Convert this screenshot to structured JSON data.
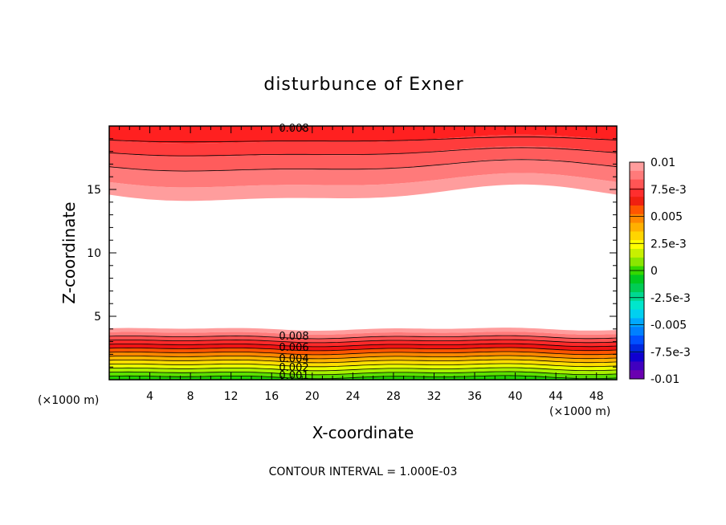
{
  "chart_data": {
    "type": "contour",
    "title": "disturbunce of Exner",
    "xlabel": "X-coordinate",
    "ylabel": "Z-coordinate",
    "x_unit": "(×1000 m)",
    "y_unit": "(×1000 m)",
    "xlim": [
      0,
      50
    ],
    "ylim": [
      0,
      20
    ],
    "xticks": [
      4,
      8,
      12,
      16,
      20,
      24,
      28,
      32,
      36,
      40,
      44,
      48
    ],
    "yticks": [
      5,
      10,
      15
    ],
    "note": "CONTOUR INTERVAL = 1.000E-03",
    "contour_interval": 0.001,
    "colorbar": {
      "min": -0.01,
      "max": 0.01,
      "tick_values": [
        0.01,
        0.0075,
        0.005,
        0.0025,
        0,
        -0.0025,
        -0.005,
        -0.0075,
        -0.01
      ],
      "tick_labels": [
        "0.01",
        "7.5e-3",
        "0.005",
        "2.5e-3",
        "0",
        "-2.5e-3",
        "-0.005",
        "-7.5e-3",
        "-0.01"
      ],
      "colors": [
        "#ff9d9d",
        "#ff7a7a",
        "#ff5555",
        "#ff2e2e",
        "#f02010",
        "#ff5500",
        "#ff8800",
        "#ffb000",
        "#ffd500",
        "#ffff00",
        "#c8f000",
        "#8ae600",
        "#34d800",
        "#00c820",
        "#00cc55",
        "#00d890",
        "#00e6cc",
        "#00d0f0",
        "#00a8ff",
        "#0080ff",
        "#0050ff",
        "#0028e0",
        "#1000d0",
        "#4000c0",
        "#6a00b0"
      ]
    },
    "contour_labels": {
      "top": [
        "0.008"
      ],
      "bottom": [
        "0.008",
        "0.006",
        "0.004",
        "0.002",
        "0.001"
      ]
    },
    "upper_layer": {
      "levels": [
        0.001,
        0.002,
        0.003,
        0.004,
        0.005,
        0.006,
        0.007,
        0.008,
        0.009
      ],
      "colors": [
        "#ff9d9d",
        "#ff7a7a",
        "#ff5c5c",
        "#ff3c3c",
        "#ff2020"
      ]
    },
    "lower_layer": {
      "levels": [
        0.001,
        0.002,
        0.003,
        0.004,
        0.005,
        0.006,
        0.007,
        0.008,
        0.009
      ],
      "colors": [
        "#ff9d9d",
        "#ff7a7a",
        "#ff5050",
        "#ff2a2a",
        "#f01414",
        "#ff5500",
        "#ff8800",
        "#ffb400",
        "#ffdd00",
        "#e8ff00",
        "#a8f000",
        "#5ce000",
        "#20d000"
      ]
    }
  }
}
